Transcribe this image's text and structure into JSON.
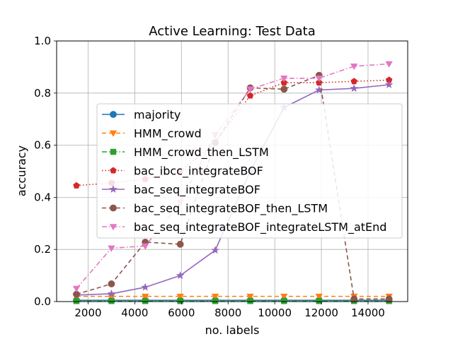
{
  "chart_data": {
    "type": "line",
    "title": "Active Learning: Test Data",
    "xlabel": "no. labels",
    "ylabel": "accuracy",
    "xlim": [
      650,
      15700
    ],
    "ylim": [
      0.0,
      1.0
    ],
    "xticks": [
      2000,
      4000,
      6000,
      8000,
      10000,
      12000,
      14000
    ],
    "yticks": [
      0.0,
      0.2,
      0.4,
      0.6,
      0.8,
      1.0
    ],
    "grid": true,
    "legend_position": "center-right",
    "x": [
      1500,
      3000,
      4450,
      5950,
      7450,
      8950,
      10400,
      11900,
      13400,
      14900
    ],
    "series": [
      {
        "name": "majority",
        "color": "#1f77b4",
        "marker": "circle",
        "linestyle": "solid",
        "values": [
          0.005,
          0.005,
          0.005,
          0.005,
          0.005,
          0.005,
          0.005,
          0.005,
          0.005,
          0.005
        ]
      },
      {
        "name": "HMM_crowd",
        "color": "#ff7f0e",
        "marker": "triangle-down",
        "linestyle": "dashed",
        "values": [
          0.02,
          0.02,
          0.02,
          0.02,
          0.02,
          0.02,
          0.02,
          0.02,
          0.02,
          0.02
        ]
      },
      {
        "name": "HMM_crowd_then_LSTM",
        "color": "#2ca02c",
        "marker": "square",
        "linestyle": "dashdot",
        "values": [
          0.002,
          0.002,
          0.002,
          0.002,
          0.002,
          0.002,
          0.002,
          0.002,
          0.002,
          0.002
        ]
      },
      {
        "name": "bac_ibcc_integrateBOF",
        "color": "#d62728",
        "marker": "pentagon",
        "linestyle": "dotted",
        "values": [
          0.445,
          0.455,
          0.47,
          0.5,
          0.61,
          0.79,
          0.84,
          0.84,
          0.845,
          0.85
        ]
      },
      {
        "name": "bac_seq_integrateBOF",
        "color": "#9467bd",
        "marker": "star",
        "linestyle": "solid",
        "values": [
          0.025,
          0.03,
          0.055,
          0.1,
          0.197,
          0.5,
          0.745,
          0.812,
          0.818,
          0.832
        ]
      },
      {
        "name": "bac_seq_integrateBOF_then_LSTM",
        "color": "#8c564b",
        "marker": "circle",
        "linestyle": "dashed",
        "values": [
          0.028,
          0.068,
          0.228,
          0.22,
          0.61,
          0.82,
          0.815,
          0.868,
          0.01,
          0.01
        ]
      },
      {
        "name": "bac_seq_integrateBOF_integrateLSTM_atEnd",
        "color": "#e377c2",
        "marker": "triangle-down",
        "linestyle": "dashdot",
        "values": [
          0.05,
          0.205,
          0.213,
          0.38,
          0.64,
          0.815,
          0.857,
          0.857,
          0.903,
          0.912
        ]
      }
    ]
  }
}
